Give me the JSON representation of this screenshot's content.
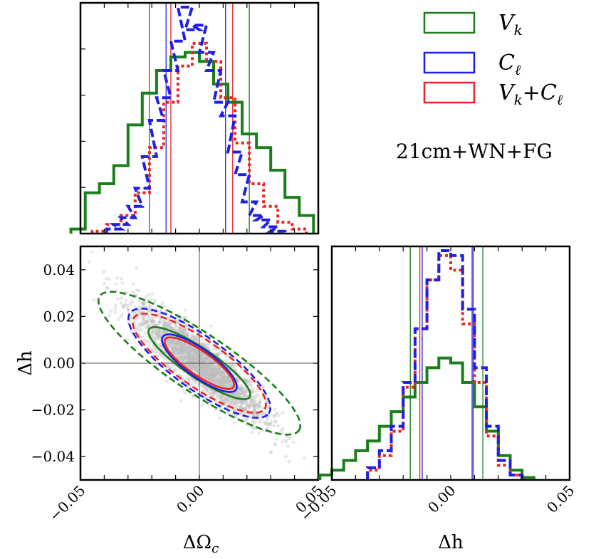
{
  "chart_data": {
    "type": "corner",
    "annotation": "21cm+WN+FG",
    "colors": {
      "Vk": "#1a7f1a",
      "Cl": "#1f1fe6",
      "VkCl": "#ee2222"
    },
    "legend": [
      {
        "key": "Vk",
        "main": "V",
        "sub": "k",
        "tail": ""
      },
      {
        "key": "Cl",
        "main": "C",
        "sub": "ℓ",
        "tail": ""
      },
      {
        "key": "VkCl",
        "main": "V",
        "sub": "k",
        "tail": "+C",
        "sub2": "ℓ"
      }
    ],
    "axes": {
      "omega": {
        "label_main": "ΔΩ",
        "label_sub": "c",
        "range": [
          -0.05,
          0.05
        ],
        "ticks": [
          -0.05,
          0.0,
          0.05
        ],
        "tick_labels": [
          "−0.05",
          "0.00",
          "0.05"
        ]
      },
      "h": {
        "label_main": "Δh",
        "range": [
          -0.05,
          0.05
        ],
        "ticks": [
          -0.04,
          -0.02,
          0.0,
          0.02,
          0.04
        ],
        "tick_labels": [
          "−0.04",
          "−0.02",
          "0.00",
          "0.02",
          "0.04"
        ],
        "bottom_ticks": [
          -0.05,
          0.0,
          0.05
        ],
        "bottom_tick_labels": [
          "−0.05",
          "0.00",
          "0.05"
        ]
      }
    },
    "hist_omega": {
      "bin_width": 0.006,
      "Vk": {
        "x": [
          -0.051,
          -0.045,
          -0.039,
          -0.033,
          -0.027,
          -0.021,
          -0.015,
          -0.009,
          -0.003,
          0.003,
          0.009,
          0.015,
          0.021,
          0.027,
          0.033,
          0.039,
          0.045
        ],
        "y": [
          0.02,
          0.18,
          0.22,
          0.3,
          0.48,
          0.62,
          0.72,
          0.78,
          0.8,
          0.76,
          0.66,
          0.58,
          0.44,
          0.38,
          0.28,
          0.16,
          0.08
        ]
      },
      "Cl": {
        "x": [
          -0.036,
          -0.033,
          -0.03,
          -0.027,
          -0.024,
          -0.021,
          -0.018,
          -0.015,
          -0.012,
          -0.009,
          -0.006,
          -0.003,
          0.0,
          0.003,
          0.006,
          0.009,
          0.012,
          0.015,
          0.018,
          0.021,
          0.024,
          0.027,
          0.03,
          0.033
        ],
        "y": [
          0.02,
          0.04,
          0.07,
          0.12,
          0.2,
          0.34,
          0.5,
          0.6,
          0.72,
          0.85,
          1.0,
          0.9,
          0.92,
          0.8,
          0.72,
          0.58,
          0.52,
          0.36,
          0.26,
          0.14,
          0.08,
          0.06,
          0.03,
          0.01
        ]
      },
      "VkCl": {
        "x": [
          -0.042,
          -0.036,
          -0.03,
          -0.024,
          -0.018,
          -0.012,
          -0.006,
          0.0,
          0.006,
          0.012,
          0.018,
          0.024,
          0.03,
          0.036,
          0.042
        ],
        "y": [
          0.01,
          0.04,
          0.08,
          0.18,
          0.38,
          0.58,
          0.74,
          0.84,
          0.76,
          0.6,
          0.4,
          0.22,
          0.12,
          0.05,
          0.02
        ]
      },
      "vlines": {
        "Vk": [
          -0.021,
          0.021
        ],
        "Cl": [
          -0.014,
          0.011
        ],
        "VkCl": [
          -0.012,
          0.014
        ]
      }
    },
    "hist_h": {
      "bin_width": 0.005,
      "Vk": {
        "x": [
          -0.0525,
          -0.0475,
          -0.0425,
          -0.0375,
          -0.0325,
          -0.0275,
          -0.0225,
          -0.0175,
          -0.0125,
          -0.0075,
          -0.0025,
          0.0025,
          0.0075,
          0.0125,
          0.0175,
          0.0225,
          0.0275,
          0.0325
        ],
        "y": [
          0.02,
          0.04,
          0.08,
          0.12,
          0.16,
          0.22,
          0.28,
          0.34,
          0.4,
          0.46,
          0.5,
          0.48,
          0.4,
          0.3,
          0.2,
          0.1,
          0.04,
          0.01
        ]
      },
      "Cl": {
        "x": [
          -0.0325,
          -0.0275,
          -0.0225,
          -0.0175,
          -0.0125,
          -0.0075,
          -0.0025,
          0.0025,
          0.0075,
          0.0125,
          0.0175,
          0.0225,
          0.0275
        ],
        "y": [
          0.05,
          0.12,
          0.22,
          0.4,
          0.62,
          0.82,
          0.94,
          0.92,
          0.7,
          0.46,
          0.22,
          0.08,
          0.02
        ]
      },
      "VkCl": {
        "x": [
          -0.0325,
          -0.0275,
          -0.0225,
          -0.0175,
          -0.0125,
          -0.0075,
          -0.0025,
          0.0025,
          0.0075,
          0.0125,
          0.0175,
          0.0225,
          0.0275
        ],
        "y": [
          0.04,
          0.1,
          0.2,
          0.38,
          0.62,
          0.82,
          0.92,
          0.86,
          0.64,
          0.4,
          0.18,
          0.06,
          0.02
        ]
      },
      "vlines": {
        "Vk": [
          -0.017,
          0.0135
        ],
        "Cl": [
          -0.012,
          0.009
        ],
        "VkCl": [
          -0.013,
          0.0095
        ]
      }
    },
    "scatter_2d": {
      "center": [
        0.0,
        0.0
      ],
      "covariance": [
        [
          0.000178,
          -0.000142
        ],
        [
          -0.000142,
          0.000144
        ]
      ],
      "cross_lines": {
        "x": 0.0,
        "y": 0.0
      }
    },
    "ellipses": [
      {
        "series": "Vk",
        "level": "1sigma",
        "dashed": false,
        "center": [
          0.0,
          0.0
        ],
        "semi_major": 0.0255,
        "semi_minor": 0.0062,
        "angle_deg": -34
      },
      {
        "series": "Vk",
        "level": "2sigma",
        "dashed": true,
        "center": [
          0.0,
          0.0
        ],
        "semi_major": 0.0505,
        "semi_minor": 0.0123,
        "angle_deg": -34
      },
      {
        "series": "Cl",
        "level": "1sigma",
        "dashed": false,
        "center": [
          0.0,
          0.0
        ],
        "semi_major": 0.019,
        "semi_minor": 0.0058,
        "angle_deg": -36
      },
      {
        "series": "Cl",
        "level": "2sigma",
        "dashed": true,
        "center": [
          0.0,
          0.0
        ],
        "semi_major": 0.036,
        "semi_minor": 0.011,
        "angle_deg": -36
      },
      {
        "series": "VkCl",
        "level": "1sigma",
        "dashed": false,
        "center": [
          0.0,
          0.0
        ],
        "semi_major": 0.0175,
        "semi_minor": 0.005,
        "angle_deg": -35
      },
      {
        "series": "VkCl",
        "level": "2sigma",
        "dashed": true,
        "center": [
          0.0,
          0.0
        ],
        "semi_major": 0.0335,
        "semi_minor": 0.0098,
        "angle_deg": -35
      }
    ]
  }
}
